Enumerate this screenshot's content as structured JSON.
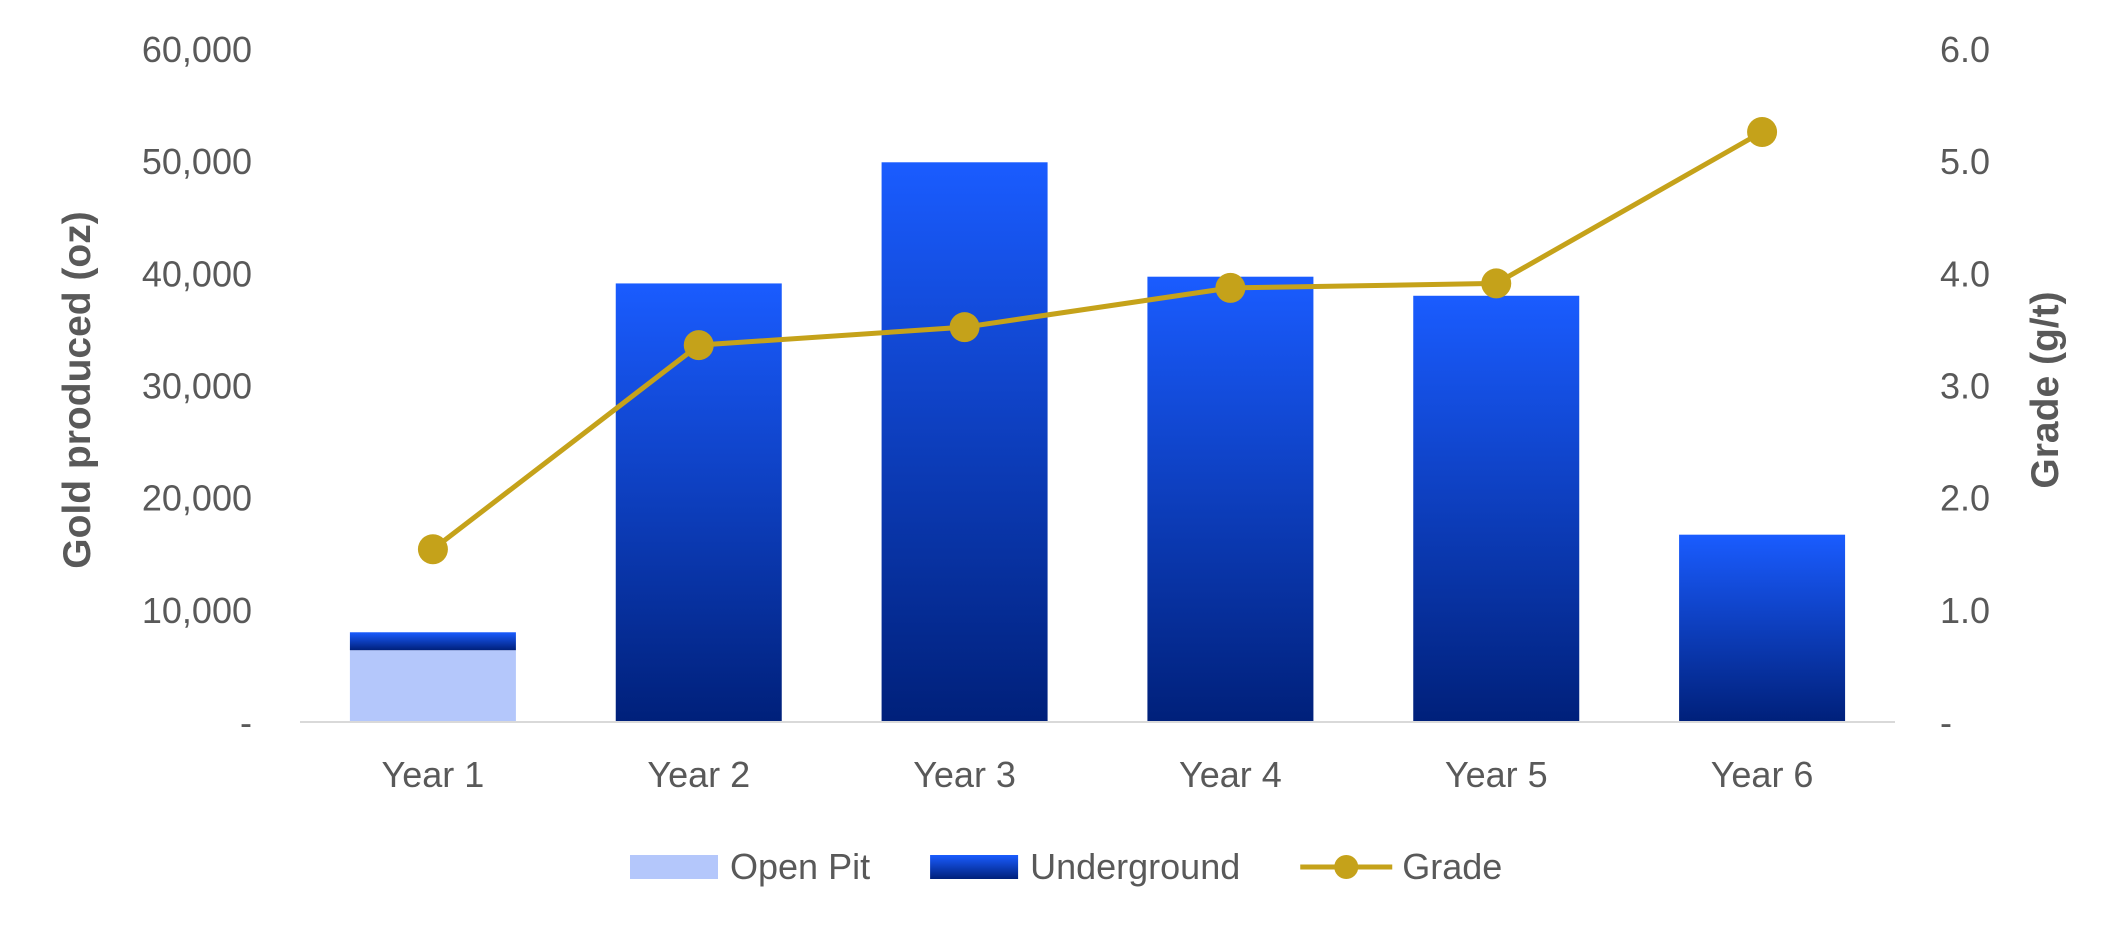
{
  "chart_data": {
    "type": "bar",
    "stacked": true,
    "categories": [
      "Year 1",
      "Year 2",
      "Year 3",
      "Year 4",
      "Year 5",
      "Year 6"
    ],
    "series": [
      {
        "name": "Open Pit",
        "kind": "bar",
        "axis": "left",
        "color": "#b4c7fb",
        "values": [
          6400,
          0,
          0,
          0,
          0,
          0
        ]
      },
      {
        "name": "Underground",
        "kind": "bar",
        "axis": "left",
        "color": "#1a5cff",
        "color_dark": "#00207a",
        "values": [
          1600,
          39100,
          49900,
          39700,
          38000,
          16700
        ]
      },
      {
        "name": "Grade",
        "kind": "line",
        "axis": "right",
        "color": "#c5a21a",
        "values": [
          1.54,
          3.36,
          3.52,
          3.87,
          3.91,
          5.26
        ]
      }
    ],
    "ylabel": "Gold produced (oz)",
    "y2label": "Grade (g/t)",
    "ylim": [
      0,
      60000
    ],
    "y2lim": [
      0,
      6
    ],
    "yticks": [
      "-",
      "10,000",
      "20,000",
      "30,000",
      "40,000",
      "50,000",
      "60,000"
    ],
    "y2ticks": [
      "-",
      "1.0",
      "2.0",
      "3.0",
      "4.0",
      "5.0",
      "6.0"
    ],
    "grid": false,
    "legend": "bottom-center",
    "axis_color": "#d9d9d9"
  }
}
